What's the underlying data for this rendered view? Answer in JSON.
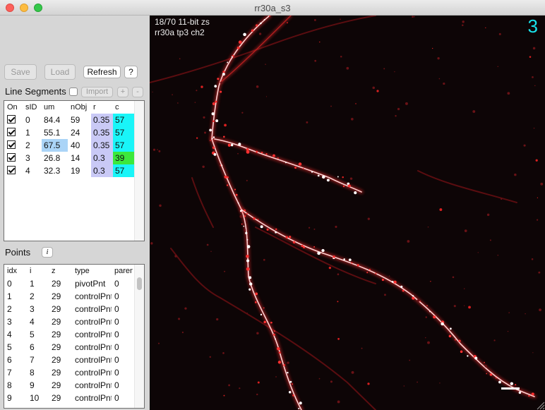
{
  "window": {
    "title": "rr30a_s3"
  },
  "toolbar": {
    "save_label": "Save",
    "load_label": "Load",
    "refresh_label": "Refresh",
    "help_label": "?"
  },
  "line_segments": {
    "label": "Line Segments",
    "import_label": "Import",
    "add_label": "+",
    "remove_label": "-",
    "columns": [
      "On",
      "sID",
      "um",
      "nObj",
      "r",
      "c"
    ],
    "rows": [
      {
        "on": true,
        "sid": "0",
        "um": "84.4",
        "nobj": "59",
        "r": "0.35",
        "c": "57"
      },
      {
        "on": true,
        "sid": "1",
        "um": "55.1",
        "nobj": "24",
        "r": "0.35",
        "c": "57"
      },
      {
        "on": true,
        "sid": "2",
        "um": "67.5",
        "nobj": "40",
        "r": "0.35",
        "c": "57"
      },
      {
        "on": true,
        "sid": "3",
        "um": "26.8",
        "nobj": "14",
        "r": "0.3",
        "c": "39"
      },
      {
        "on": true,
        "sid": "4",
        "um": "32.3",
        "nobj": "19",
        "r": "0.3",
        "c": "57"
      }
    ],
    "colors": {
      "r_bg": "#c9c9f6",
      "c_bg_57": "#19f5f8",
      "c_bg_39": "#3ce83c",
      "um_highlight": "#aad4f7"
    }
  },
  "points": {
    "label": "Points",
    "info_label": "i",
    "columns": [
      "idx",
      "i",
      "z",
      "type",
      "parent"
    ],
    "rows": [
      {
        "idx": "0",
        "i": "1",
        "z": "29",
        "type": "pivotPnt",
        "parent": "0"
      },
      {
        "idx": "1",
        "i": "2",
        "z": "29",
        "type": "controlPnt",
        "parent": "0"
      },
      {
        "idx": "2",
        "i": "3",
        "z": "29",
        "type": "controlPnt",
        "parent": "0"
      },
      {
        "idx": "3",
        "i": "4",
        "z": "29",
        "type": "controlPnt",
        "parent": "0"
      },
      {
        "idx": "4",
        "i": "5",
        "z": "29",
        "type": "controlPnt",
        "parent": "0"
      },
      {
        "idx": "5",
        "i": "6",
        "z": "29",
        "type": "controlPnt",
        "parent": "0"
      },
      {
        "idx": "6",
        "i": "7",
        "z": "29",
        "type": "controlPnt",
        "parent": "0"
      },
      {
        "idx": "7",
        "i": "8",
        "z": "29",
        "type": "controlPnt",
        "parent": "0"
      },
      {
        "idx": "8",
        "i": "9",
        "z": "29",
        "type": "controlPnt",
        "parent": "0"
      },
      {
        "idx": "9",
        "i": "10",
        "z": "29",
        "type": "controlPnt",
        "parent": "0"
      }
    ]
  },
  "viewer": {
    "slice_info": "18/70 11-bit zs",
    "channel_info": "rr30a tp3 ch2",
    "timepoint": "3",
    "dendrite_color": "#ff3030",
    "overlay_number_color": "#19e3ec"
  }
}
